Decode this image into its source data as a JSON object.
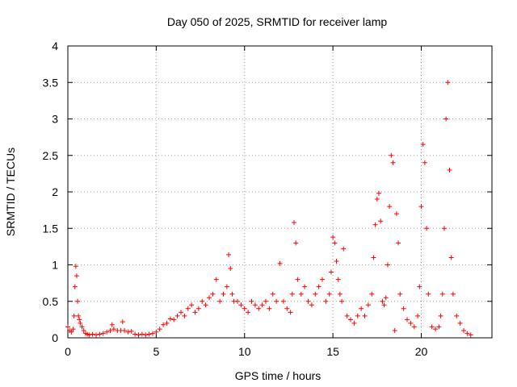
{
  "chart_data": {
    "type": "scatter",
    "title": "Day 050 of 2025, SRMTID for receiver lamp",
    "xlabel": "GPS time / hours",
    "ylabel": "SRMTID / TECUs",
    "xlim": [
      0,
      24
    ],
    "ylim": [
      0,
      4
    ],
    "xticks": [
      0,
      5,
      10,
      15,
      20
    ],
    "xtick_labels": [
      "0",
      "5",
      "10",
      "15",
      "20"
    ],
    "yticks": [
      0,
      0.5,
      1,
      1.5,
      2,
      2.5,
      3,
      3.5,
      4
    ],
    "ytick_labels": [
      "0",
      "0.5",
      "1",
      "1.5",
      "2",
      "2.5",
      "3",
      "3.5",
      "4"
    ],
    "grid": true,
    "marker": "plus",
    "color": "#ff0000",
    "series": [
      {
        "name": "SRMTID",
        "x": [
          0.0,
          0.1,
          0.2,
          0.3,
          0.35,
          0.4,
          0.45,
          0.5,
          0.55,
          0.6,
          0.65,
          0.7,
          0.8,
          0.9,
          1.0,
          1.1,
          1.2,
          1.4,
          1.6,
          1.8,
          2.0,
          2.2,
          2.4,
          2.5,
          2.6,
          2.8,
          3.0,
          3.1,
          3.2,
          3.4,
          3.6,
          3.8,
          4.0,
          4.2,
          4.4,
          4.6,
          4.8,
          5.0,
          5.2,
          5.4,
          5.6,
          5.8,
          6.0,
          6.2,
          6.4,
          6.6,
          6.8,
          7.0,
          7.2,
          7.4,
          7.6,
          7.8,
          8.0,
          8.2,
          8.4,
          8.6,
          8.8,
          9.0,
          9.1,
          9.2,
          9.3,
          9.4,
          9.6,
          9.8,
          10.0,
          10.2,
          10.4,
          10.6,
          10.8,
          11.0,
          11.2,
          11.4,
          11.6,
          11.8,
          12.0,
          12.2,
          12.4,
          12.6,
          12.7,
          12.8,
          12.9,
          13.0,
          13.2,
          13.4,
          13.6,
          13.8,
          14.0,
          14.2,
          14.4,
          14.6,
          14.8,
          14.9,
          15.0,
          15.1,
          15.2,
          15.3,
          15.4,
          15.5,
          15.6,
          15.8,
          16.0,
          16.2,
          16.4,
          16.6,
          16.8,
          17.0,
          17.2,
          17.3,
          17.4,
          17.5,
          17.6,
          17.7,
          17.8,
          17.9,
          18.0,
          18.1,
          18.2,
          18.3,
          18.4,
          18.5,
          18.6,
          18.7,
          18.8,
          19.0,
          19.2,
          19.4,
          19.6,
          19.8,
          19.9,
          20.0,
          20.1,
          20.2,
          20.3,
          20.4,
          20.6,
          20.8,
          21.0,
          21.1,
          21.2,
          21.3,
          21.4,
          21.5,
          21.6,
          21.7,
          21.8,
          22.0,
          22.2,
          22.4,
          22.6,
          22.8
        ],
        "y": [
          0.15,
          0.1,
          0.08,
          0.12,
          0.3,
          0.7,
          0.98,
          0.85,
          0.5,
          0.3,
          0.25,
          0.2,
          0.15,
          0.1,
          0.06,
          0.05,
          0.04,
          0.05,
          0.04,
          0.05,
          0.06,
          0.08,
          0.1,
          0.18,
          0.12,
          0.1,
          0.1,
          0.22,
          0.1,
          0.08,
          0.09,
          0.05,
          0.04,
          0.05,
          0.04,
          0.05,
          0.06,
          0.08,
          0.12,
          0.18,
          0.2,
          0.26,
          0.25,
          0.3,
          0.35,
          0.3,
          0.4,
          0.45,
          0.35,
          0.4,
          0.5,
          0.45,
          0.55,
          0.6,
          0.8,
          0.5,
          0.6,
          0.7,
          1.14,
          0.95,
          0.6,
          0.5,
          0.5,
          0.45,
          0.4,
          0.35,
          0.5,
          0.45,
          0.4,
          0.45,
          0.5,
          0.4,
          0.6,
          0.5,
          1.02,
          0.5,
          0.4,
          0.35,
          0.6,
          1.58,
          1.3,
          0.8,
          0.6,
          0.7,
          0.5,
          0.45,
          0.6,
          0.7,
          0.8,
          0.5,
          0.6,
          0.9,
          1.38,
          1.3,
          1.05,
          0.8,
          0.6,
          0.5,
          1.22,
          0.3,
          0.25,
          0.2,
          0.3,
          0.4,
          0.3,
          0.45,
          0.6,
          1.1,
          1.55,
          1.9,
          1.98,
          1.6,
          0.5,
          0.45,
          0.55,
          1.0,
          1.8,
          2.5,
          2.4,
          0.1,
          1.7,
          1.3,
          0.6,
          0.4,
          0.25,
          0.2,
          0.15,
          0.3,
          0.7,
          1.8,
          2.65,
          2.4,
          1.5,
          0.6,
          0.15,
          0.12,
          0.15,
          0.3,
          0.6,
          1.5,
          3.0,
          3.5,
          2.3,
          1.1,
          0.6,
          0.3,
          0.2,
          0.1,
          0.06,
          0.04
        ]
      }
    ]
  }
}
